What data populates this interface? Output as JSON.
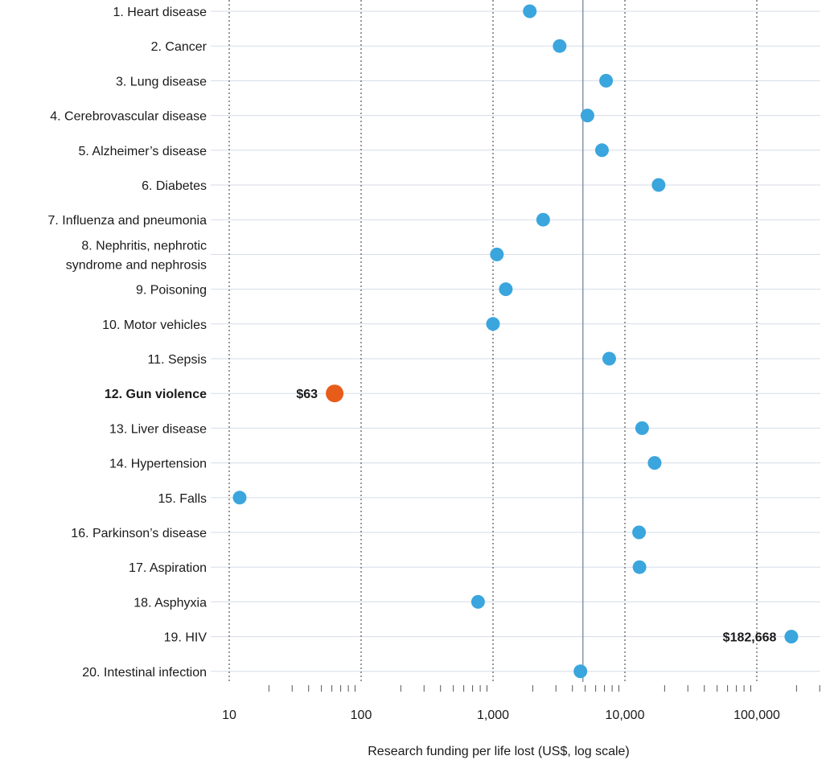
{
  "chart_data": {
    "type": "scatter",
    "xlabel": "Research funding per life lost (US$, log scale)",
    "x_scale": "log",
    "xlim": [
      10,
      300000
    ],
    "x_ticks": [
      {
        "value": 10,
        "label": "10"
      },
      {
        "value": 100,
        "label": "100"
      },
      {
        "value": 1000,
        "label": "1,000"
      },
      {
        "value": 10000,
        "label": "10,000"
      },
      {
        "value": 100000,
        "label": "100,000"
      }
    ],
    "reference_line_x": 4800,
    "grid": true,
    "colors": {
      "point": "#3aa6dd",
      "highlight": "#e85c1a",
      "row_line": "#d5dbe8",
      "reference_line": "#8a98ad"
    },
    "categories": [
      {
        "label": [
          "1. Heart disease"
        ],
        "value": 1900
      },
      {
        "label": [
          "2. Cancer"
        ],
        "value": 3200
      },
      {
        "label": [
          "3. Lung disease"
        ],
        "value": 7200
      },
      {
        "label": [
          "4. Cerebrovascular disease"
        ],
        "value": 5200
      },
      {
        "label": [
          "5. Alzheimer’s disease"
        ],
        "value": 6700
      },
      {
        "label": [
          "6. Diabetes"
        ],
        "value": 18000
      },
      {
        "label": [
          "7. Influenza and pneumonia"
        ],
        "value": 2400
      },
      {
        "label": [
          "8. Nephritis, nephrotic",
          "syndrome and nephrosis"
        ],
        "value": 1070
      },
      {
        "label": [
          "9. Poisoning"
        ],
        "value": 1250
      },
      {
        "label": [
          "10. Motor vehicles"
        ],
        "value": 1000
      },
      {
        "label": [
          "11. Sepsis"
        ],
        "value": 7600
      },
      {
        "label": [
          "12. Gun violence"
        ],
        "value": 63,
        "highlight": true,
        "value_label": "$63"
      },
      {
        "label": [
          "13. Liver disease"
        ],
        "value": 13500
      },
      {
        "label": [
          "14. Hypertension"
        ],
        "value": 16800
      },
      {
        "label": [
          "15. Falls"
        ],
        "value": 12
      },
      {
        "label": [
          "16. Parkinson’s disease"
        ],
        "value": 12800
      },
      {
        "label": [
          "17. Aspiration"
        ],
        "value": 12900
      },
      {
        "label": [
          "18. Asphyxia"
        ],
        "value": 770
      },
      {
        "label": [
          "19. HIV"
        ],
        "value": 182668,
        "value_label": "$182,668"
      },
      {
        "label": [
          "20. Intestinal infection"
        ],
        "value": 4600
      }
    ]
  }
}
